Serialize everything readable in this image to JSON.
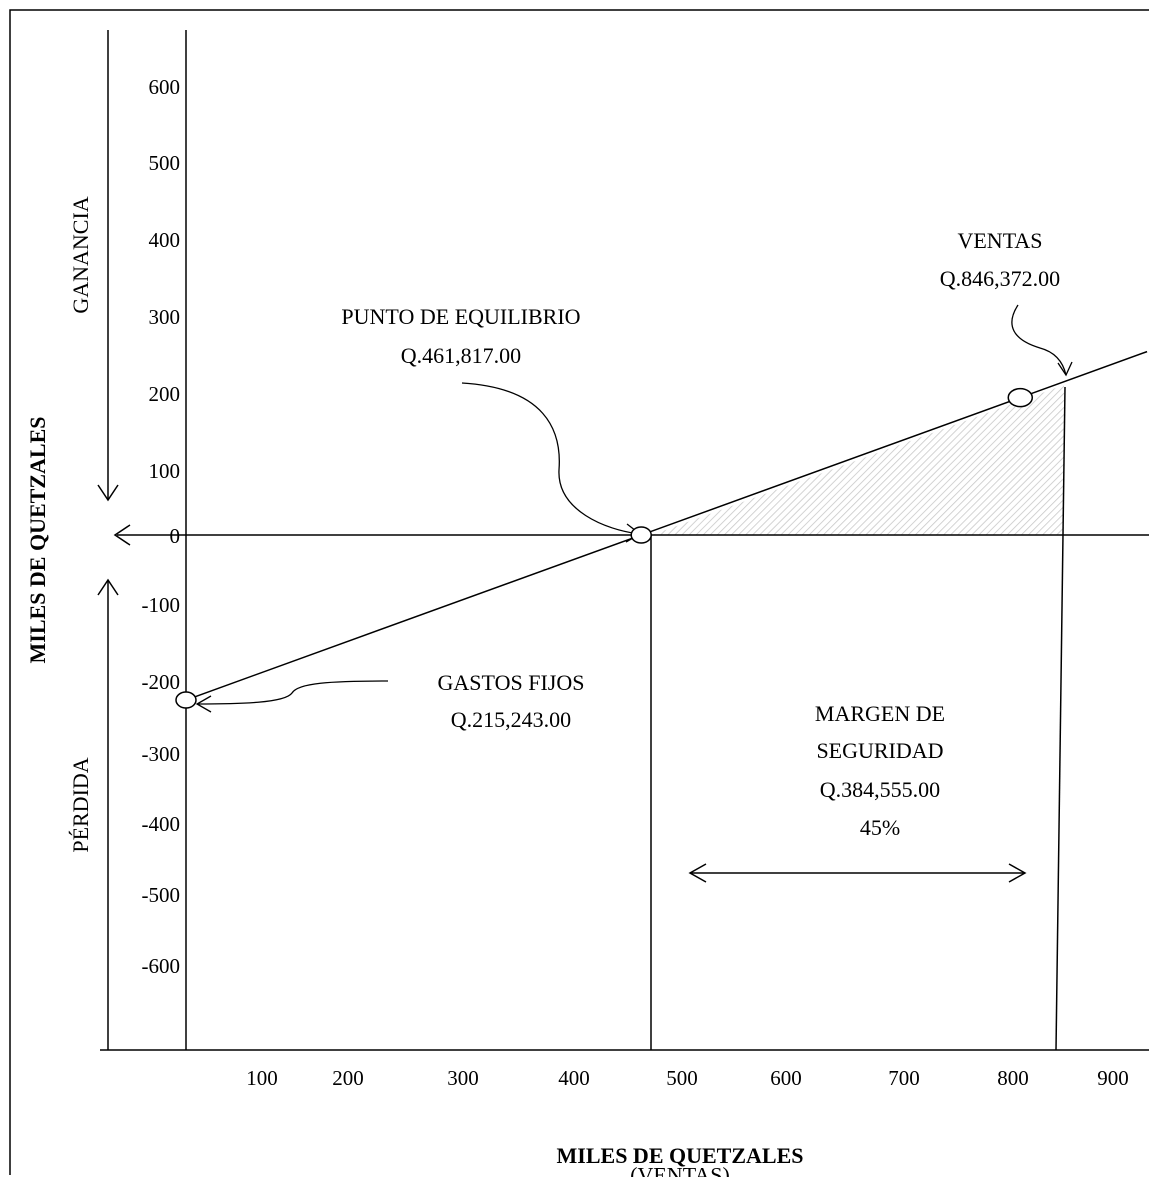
{
  "chart_data": {
    "type": "line",
    "title": "",
    "xlabel": "MILES DE QUETZALES",
    "xlabel_sub": "(VENTAS)",
    "ylabel": "MILES DE QUETZALES",
    "y_region_top": "GANANCIA",
    "y_region_bottom": "PÉRDIDA",
    "x_ticks": [
      100,
      200,
      300,
      400,
      500,
      600,
      700,
      800,
      900
    ],
    "y_ticks": [
      600,
      500,
      400,
      300,
      200,
      100,
      0,
      -100,
      -200,
      -300,
      -400,
      -500,
      -600
    ],
    "xlim": [
      0,
      900
    ],
    "ylim": [
      -600,
      600
    ],
    "grid": false,
    "series": [
      {
        "values_x": [
          0,
          461.817,
          846.372
        ],
        "values_y": [
          -215.243,
          0,
          179.2
        ]
      }
    ],
    "points": {
      "fixed_costs": {
        "x": 0,
        "y": -215.243
      },
      "break_even": {
        "x": 461.817,
        "y": 0
      },
      "sales": {
        "x": 846.372,
        "y": 179.2
      }
    },
    "annotations": {
      "break_even_label": "PUNTO DE EQUILIBRIO",
      "break_even_value": "Q.461,817.00",
      "sales_label": "VENTAS",
      "sales_value": "Q.846,372.00",
      "fixed_costs_label": "GASTOS FIJOS",
      "fixed_costs_value": "Q.215,243.00",
      "margin_label_1": "MARGEN DE",
      "margin_label_2": "SEGURIDAD",
      "margin_value": "Q.384,555.00",
      "margin_percent": "45%"
    }
  }
}
